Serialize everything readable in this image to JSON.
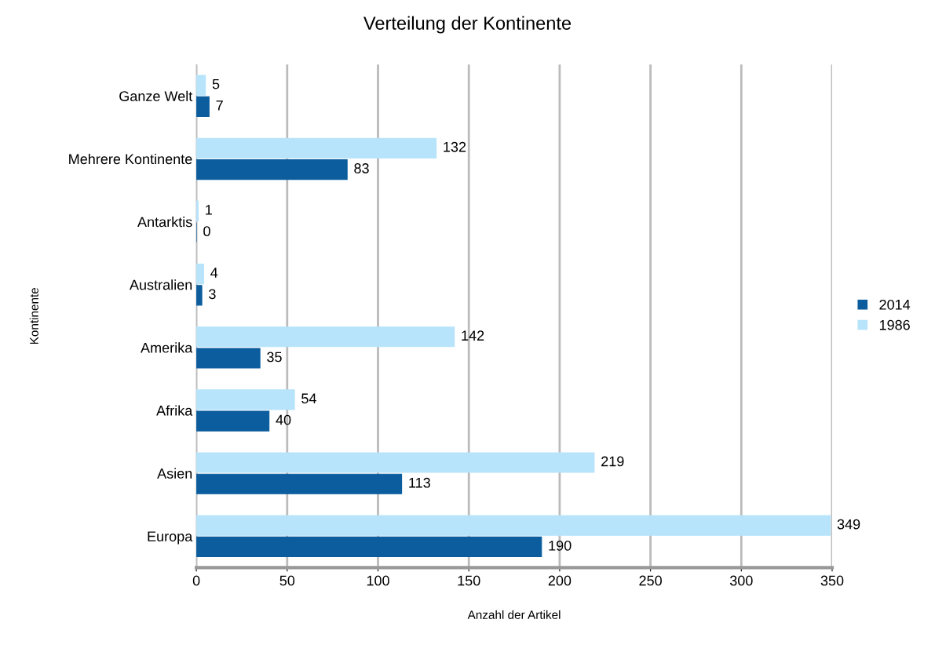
{
  "chart_data": {
    "type": "bar",
    "orientation": "horizontal",
    "title": "Verteilung der Kontinente",
    "xlabel": "Anzahl der Artikel",
    "ylabel": "Kontinente",
    "categories": [
      "Ganze Welt",
      "Mehrere Kontinente",
      "Antarktis",
      "Australien",
      "Amerika",
      "Afrika",
      "Asien",
      "Europa"
    ],
    "series": [
      {
        "name": "2014",
        "color": "#0b5d9e",
        "values": [
          7,
          83,
          0,
          3,
          35,
          40,
          113,
          190
        ]
      },
      {
        "name": "1986",
        "color": "#b7e3fb",
        "values": [
          5,
          132,
          1,
          4,
          142,
          54,
          219,
          349
        ]
      }
    ],
    "xlim": [
      0,
      350
    ],
    "xticks": [
      0,
      50,
      100,
      150,
      200,
      250,
      300,
      350
    ],
    "grid": "x",
    "legend": "right",
    "data_labels": true
  }
}
